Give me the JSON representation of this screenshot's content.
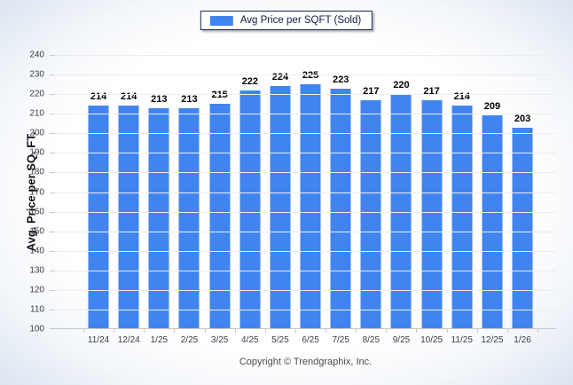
{
  "legend": {
    "label": "Avg Price per SQFT (Sold)"
  },
  "footer": {
    "copyright": "Copyright © Trendgraphix, Inc."
  },
  "colors": {
    "bar": "#4184ef"
  },
  "chart_data": {
    "type": "bar",
    "title": "",
    "series_name": "Avg Price per SQFT (Sold)",
    "categories": [
      "11/24",
      "12/24",
      "1/25",
      "2/25",
      "3/25",
      "4/25",
      "5/25",
      "6/25",
      "7/25",
      "8/25",
      "9/25",
      "10/25",
      "11/25",
      "12/25",
      "1/26"
    ],
    "values": [
      214,
      214,
      213,
      213,
      215,
      222,
      224,
      225,
      223,
      217,
      220,
      217,
      214,
      209,
      203
    ],
    "xlabel": "",
    "ylabel": "Avg. Price per SQ. FT.",
    "ylim": [
      100,
      240
    ],
    "ytick_step": 10,
    "grid": "horizontal",
    "legend_position": "top-center",
    "value_labels": true
  }
}
